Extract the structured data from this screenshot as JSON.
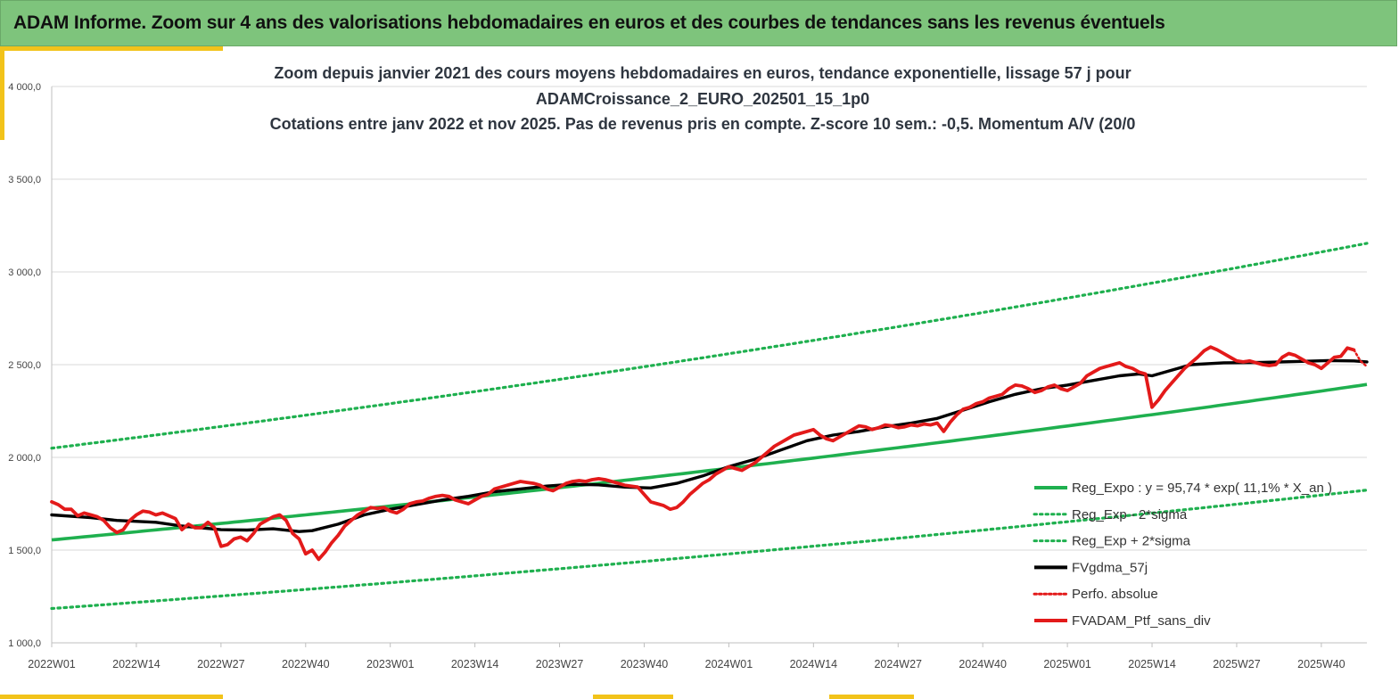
{
  "banner": {
    "title": "ADAM Informe. Zoom sur 4 ans des valorisations hebdomadaires en euros et des courbes de tendances sans les revenus éventuels"
  },
  "colors": {
    "banner_bg": "#7ec47c",
    "accent": "#f2c31a",
    "trend": "#1fb04f",
    "band": "#1fb04f",
    "smooth": "#000000",
    "perf": "#e31a1a",
    "price": "#e31a1a"
  },
  "chart_data": {
    "type": "line",
    "title_lines": [
      "Zoom depuis janvier 2021 des cours moyens hebdomadaires  en euros, tendance exponentielle, lissage 57 j pour",
      "ADAMCroissance_2_EURO_202501_15_1p0",
      "Cotations  entre janv 2022 et nov 2025. Pas de revenus pris en compte. Z-score 10 sem.: -0,5. Momentum A/V (20/0"
    ],
    "x_range": [
      0,
      202
    ],
    "ylim": [
      1000,
      4000
    ],
    "y_ticks": [
      {
        "value": 1000,
        "label": "1 000,0"
      },
      {
        "value": 1500,
        "label": "1 500,0"
      },
      {
        "value": 2000,
        "label": "2 000,0"
      },
      {
        "value": 2500,
        "label": "2 500,0"
      },
      {
        "value": 3000,
        "label": "3 000,0"
      },
      {
        "value": 3500,
        "label": "3 500,0"
      },
      {
        "value": 4000,
        "label": "4 000,0"
      }
    ],
    "x_ticks": [
      {
        "value": 0,
        "label": "2022W01"
      },
      {
        "value": 13,
        "label": "2022W14"
      },
      {
        "value": 26,
        "label": "2022W27"
      },
      {
        "value": 39,
        "label": "2022W40"
      },
      {
        "value": 52,
        "label": "2023W01"
      },
      {
        "value": 65,
        "label": "2023W14"
      },
      {
        "value": 78,
        "label": "2023W27"
      },
      {
        "value": 91,
        "label": "2023W40"
      },
      {
        "value": 104,
        "label": "2024W01"
      },
      {
        "value": 117,
        "label": "2024W14"
      },
      {
        "value": 130,
        "label": "2024W27"
      },
      {
        "value": 143,
        "label": "2024W40"
      },
      {
        "value": 156,
        "label": "2025W01"
      },
      {
        "value": 169,
        "label": "2025W14"
      },
      {
        "value": 182,
        "label": "2025W27"
      },
      {
        "value": 195,
        "label": "2025W40"
      }
    ],
    "regression": {
      "a": 95.74,
      "rate": 0.111,
      "x0": 0,
      "y0": 1555,
      "lower_factor": 0.762,
      "upper_factor": 1.318
    },
    "series": [
      {
        "name": "FVgdma_57j",
        "style": "smooth",
        "points": [
          [
            0,
            1690
          ],
          [
            6,
            1675
          ],
          [
            10,
            1660
          ],
          [
            16,
            1650
          ],
          [
            20,
            1630
          ],
          [
            26,
            1610
          ],
          [
            30,
            1608
          ],
          [
            34,
            1615
          ],
          [
            38,
            1600
          ],
          [
            40,
            1605
          ],
          [
            44,
            1640
          ],
          [
            48,
            1690
          ],
          [
            52,
            1720
          ],
          [
            56,
            1745
          ],
          [
            60,
            1770
          ],
          [
            64,
            1790
          ],
          [
            68,
            1815
          ],
          [
            72,
            1830
          ],
          [
            76,
            1845
          ],
          [
            80,
            1855
          ],
          [
            84,
            1852
          ],
          [
            88,
            1840
          ],
          [
            92,
            1835
          ],
          [
            96,
            1860
          ],
          [
            100,
            1900
          ],
          [
            104,
            1950
          ],
          [
            108,
            1990
          ],
          [
            112,
            2040
          ],
          [
            116,
            2090
          ],
          [
            120,
            2120
          ],
          [
            124,
            2140
          ],
          [
            128,
            2165
          ],
          [
            132,
            2185
          ],
          [
            136,
            2210
          ],
          [
            140,
            2255
          ],
          [
            144,
            2300
          ],
          [
            148,
            2340
          ],
          [
            152,
            2370
          ],
          [
            156,
            2390
          ],
          [
            160,
            2415
          ],
          [
            164,
            2440
          ],
          [
            167,
            2450
          ],
          [
            169,
            2440
          ],
          [
            172,
            2470
          ],
          [
            175,
            2500
          ],
          [
            180,
            2510
          ],
          [
            186,
            2512
          ],
          [
            192,
            2518
          ],
          [
            196,
            2522
          ],
          [
            200,
            2520
          ],
          [
            202,
            2515
          ]
        ]
      },
      {
        "name": "FVADAM_Ptf_sans_div",
        "style": "price",
        "points": [
          [
            0,
            1760
          ],
          [
            1,
            1745
          ],
          [
            2,
            1720
          ],
          [
            3,
            1720
          ],
          [
            4,
            1685
          ],
          [
            5,
            1700
          ],
          [
            6,
            1690
          ],
          [
            7,
            1680
          ],
          [
            8,
            1660
          ],
          [
            9,
            1620
          ],
          [
            10,
            1595
          ],
          [
            11,
            1610
          ],
          [
            12,
            1660
          ],
          [
            13,
            1690
          ],
          [
            14,
            1710
          ],
          [
            15,
            1705
          ],
          [
            16,
            1690
          ],
          [
            17,
            1700
          ],
          [
            18,
            1685
          ],
          [
            19,
            1670
          ],
          [
            20,
            1610
          ],
          [
            21,
            1640
          ],
          [
            22,
            1620
          ],
          [
            23,
            1620
          ],
          [
            24,
            1650
          ],
          [
            25,
            1620
          ],
          [
            26,
            1520
          ],
          [
            27,
            1530
          ],
          [
            28,
            1560
          ],
          [
            29,
            1570
          ],
          [
            30,
            1550
          ],
          [
            31,
            1590
          ],
          [
            32,
            1640
          ],
          [
            33,
            1660
          ],
          [
            34,
            1680
          ],
          [
            35,
            1690
          ],
          [
            36,
            1660
          ],
          [
            37,
            1590
          ],
          [
            38,
            1560
          ],
          [
            39,
            1480
          ],
          [
            40,
            1500
          ],
          [
            41,
            1450
          ],
          [
            42,
            1490
          ],
          [
            43,
            1540
          ],
          [
            44,
            1580
          ],
          [
            45,
            1630
          ],
          [
            46,
            1660
          ],
          [
            47,
            1690
          ],
          [
            48,
            1710
          ],
          [
            49,
            1730
          ],
          [
            50,
            1725
          ],
          [
            51,
            1730
          ],
          [
            52,
            1710
          ],
          [
            53,
            1700
          ],
          [
            54,
            1720
          ],
          [
            55,
            1750
          ],
          [
            56,
            1760
          ],
          [
            57,
            1765
          ],
          [
            58,
            1780
          ],
          [
            59,
            1790
          ],
          [
            60,
            1795
          ],
          [
            61,
            1790
          ],
          [
            62,
            1770
          ],
          [
            63,
            1760
          ],
          [
            64,
            1750
          ],
          [
            65,
            1770
          ],
          [
            66,
            1790
          ],
          [
            67,
            1800
          ],
          [
            68,
            1830
          ],
          [
            69,
            1840
          ],
          [
            70,
            1850
          ],
          [
            71,
            1860
          ],
          [
            72,
            1870
          ],
          [
            73,
            1865
          ],
          [
            74,
            1860
          ],
          [
            75,
            1850
          ],
          [
            76,
            1830
          ],
          [
            77,
            1820
          ],
          [
            78,
            1840
          ],
          [
            79,
            1860
          ],
          [
            80,
            1870
          ],
          [
            81,
            1875
          ],
          [
            82,
            1870
          ],
          [
            83,
            1880
          ],
          [
            84,
            1885
          ],
          [
            85,
            1880
          ],
          [
            86,
            1870
          ],
          [
            87,
            1860
          ],
          [
            88,
            1850
          ],
          [
            89,
            1845
          ],
          [
            90,
            1840
          ],
          [
            91,
            1800
          ],
          [
            92,
            1760
          ],
          [
            93,
            1750
          ],
          [
            94,
            1740
          ],
          [
            95,
            1720
          ],
          [
            96,
            1730
          ],
          [
            97,
            1760
          ],
          [
            98,
            1800
          ],
          [
            99,
            1830
          ],
          [
            100,
            1860
          ],
          [
            101,
            1880
          ],
          [
            102,
            1910
          ],
          [
            103,
            1930
          ],
          [
            104,
            1950
          ],
          [
            105,
            1940
          ],
          [
            106,
            1930
          ],
          [
            107,
            1950
          ],
          [
            108,
            1970
          ],
          [
            109,
            2000
          ],
          [
            110,
            2030
          ],
          [
            111,
            2060
          ],
          [
            112,
            2080
          ],
          [
            113,
            2100
          ],
          [
            114,
            2120
          ],
          [
            115,
            2130
          ],
          [
            116,
            2140
          ],
          [
            117,
            2150
          ],
          [
            118,
            2120
          ],
          [
            119,
            2100
          ],
          [
            120,
            2090
          ],
          [
            121,
            2110
          ],
          [
            122,
            2130
          ],
          [
            123,
            2150
          ],
          [
            124,
            2170
          ],
          [
            125,
            2165
          ],
          [
            126,
            2150
          ],
          [
            127,
            2160
          ],
          [
            128,
            2175
          ],
          [
            129,
            2170
          ],
          [
            130,
            2160
          ],
          [
            131,
            2165
          ],
          [
            132,
            2175
          ],
          [
            133,
            2170
          ],
          [
            134,
            2180
          ],
          [
            135,
            2175
          ],
          [
            136,
            2185
          ],
          [
            137,
            2140
          ],
          [
            138,
            2190
          ],
          [
            139,
            2230
          ],
          [
            140,
            2260
          ],
          [
            141,
            2270
          ],
          [
            142,
            2290
          ],
          [
            143,
            2300
          ],
          [
            144,
            2320
          ],
          [
            145,
            2330
          ],
          [
            146,
            2340
          ],
          [
            147,
            2370
          ],
          [
            148,
            2390
          ],
          [
            149,
            2385
          ],
          [
            150,
            2370
          ],
          [
            151,
            2350
          ],
          [
            152,
            2360
          ],
          [
            153,
            2380
          ],
          [
            154,
            2390
          ],
          [
            155,
            2370
          ],
          [
            156,
            2360
          ],
          [
            157,
            2380
          ],
          [
            158,
            2400
          ],
          [
            159,
            2440
          ],
          [
            160,
            2460
          ],
          [
            161,
            2480
          ],
          [
            162,
            2490
          ],
          [
            163,
            2500
          ],
          [
            164,
            2510
          ],
          [
            165,
            2490
          ],
          [
            166,
            2480
          ],
          [
            167,
            2460
          ],
          [
            168,
            2450
          ],
          [
            169,
            2270
          ],
          [
            170,
            2310
          ],
          [
            171,
            2360
          ],
          [
            172,
            2400
          ],
          [
            173,
            2440
          ],
          [
            174,
            2480
          ],
          [
            175,
            2510
          ],
          [
            176,
            2540
          ],
          [
            177,
            2575
          ],
          [
            178,
            2595
          ],
          [
            179,
            2580
          ],
          [
            180,
            2560
          ],
          [
            181,
            2540
          ],
          [
            182,
            2520
          ],
          [
            183,
            2515
          ],
          [
            184,
            2520
          ],
          [
            185,
            2510
          ],
          [
            186,
            2500
          ],
          [
            187,
            2495
          ],
          [
            188,
            2500
          ],
          [
            189,
            2540
          ],
          [
            190,
            2560
          ],
          [
            191,
            2550
          ],
          [
            192,
            2530
          ],
          [
            193,
            2510
          ],
          [
            194,
            2500
          ],
          [
            195,
            2480
          ],
          [
            196,
            2510
          ],
          [
            197,
            2540
          ],
          [
            198,
            2545
          ],
          [
            199,
            2590
          ],
          [
            200,
            2580
          ]
        ]
      },
      {
        "name": "Perfo. absolue",
        "style": "perf",
        "points": [
          [
            200,
            2580
          ],
          [
            201,
            2520
          ],
          [
            202,
            2490
          ]
        ]
      }
    ],
    "legend": [
      {
        "key": "trend",
        "label": "Reg_Expo : y = 95,74 * exp( 11,1% *  X_an )"
      },
      {
        "key": "lower",
        "label": "Reg_Exp - 2*sigma"
      },
      {
        "key": "upper",
        "label": "Reg_Exp + 2*sigma"
      },
      {
        "key": "smooth",
        "label": "FVgdma_57j"
      },
      {
        "key": "perf",
        "label": "Perfo. absolue"
      },
      {
        "key": "price",
        "label": "FVADAM_Ptf_sans_div"
      }
    ]
  }
}
